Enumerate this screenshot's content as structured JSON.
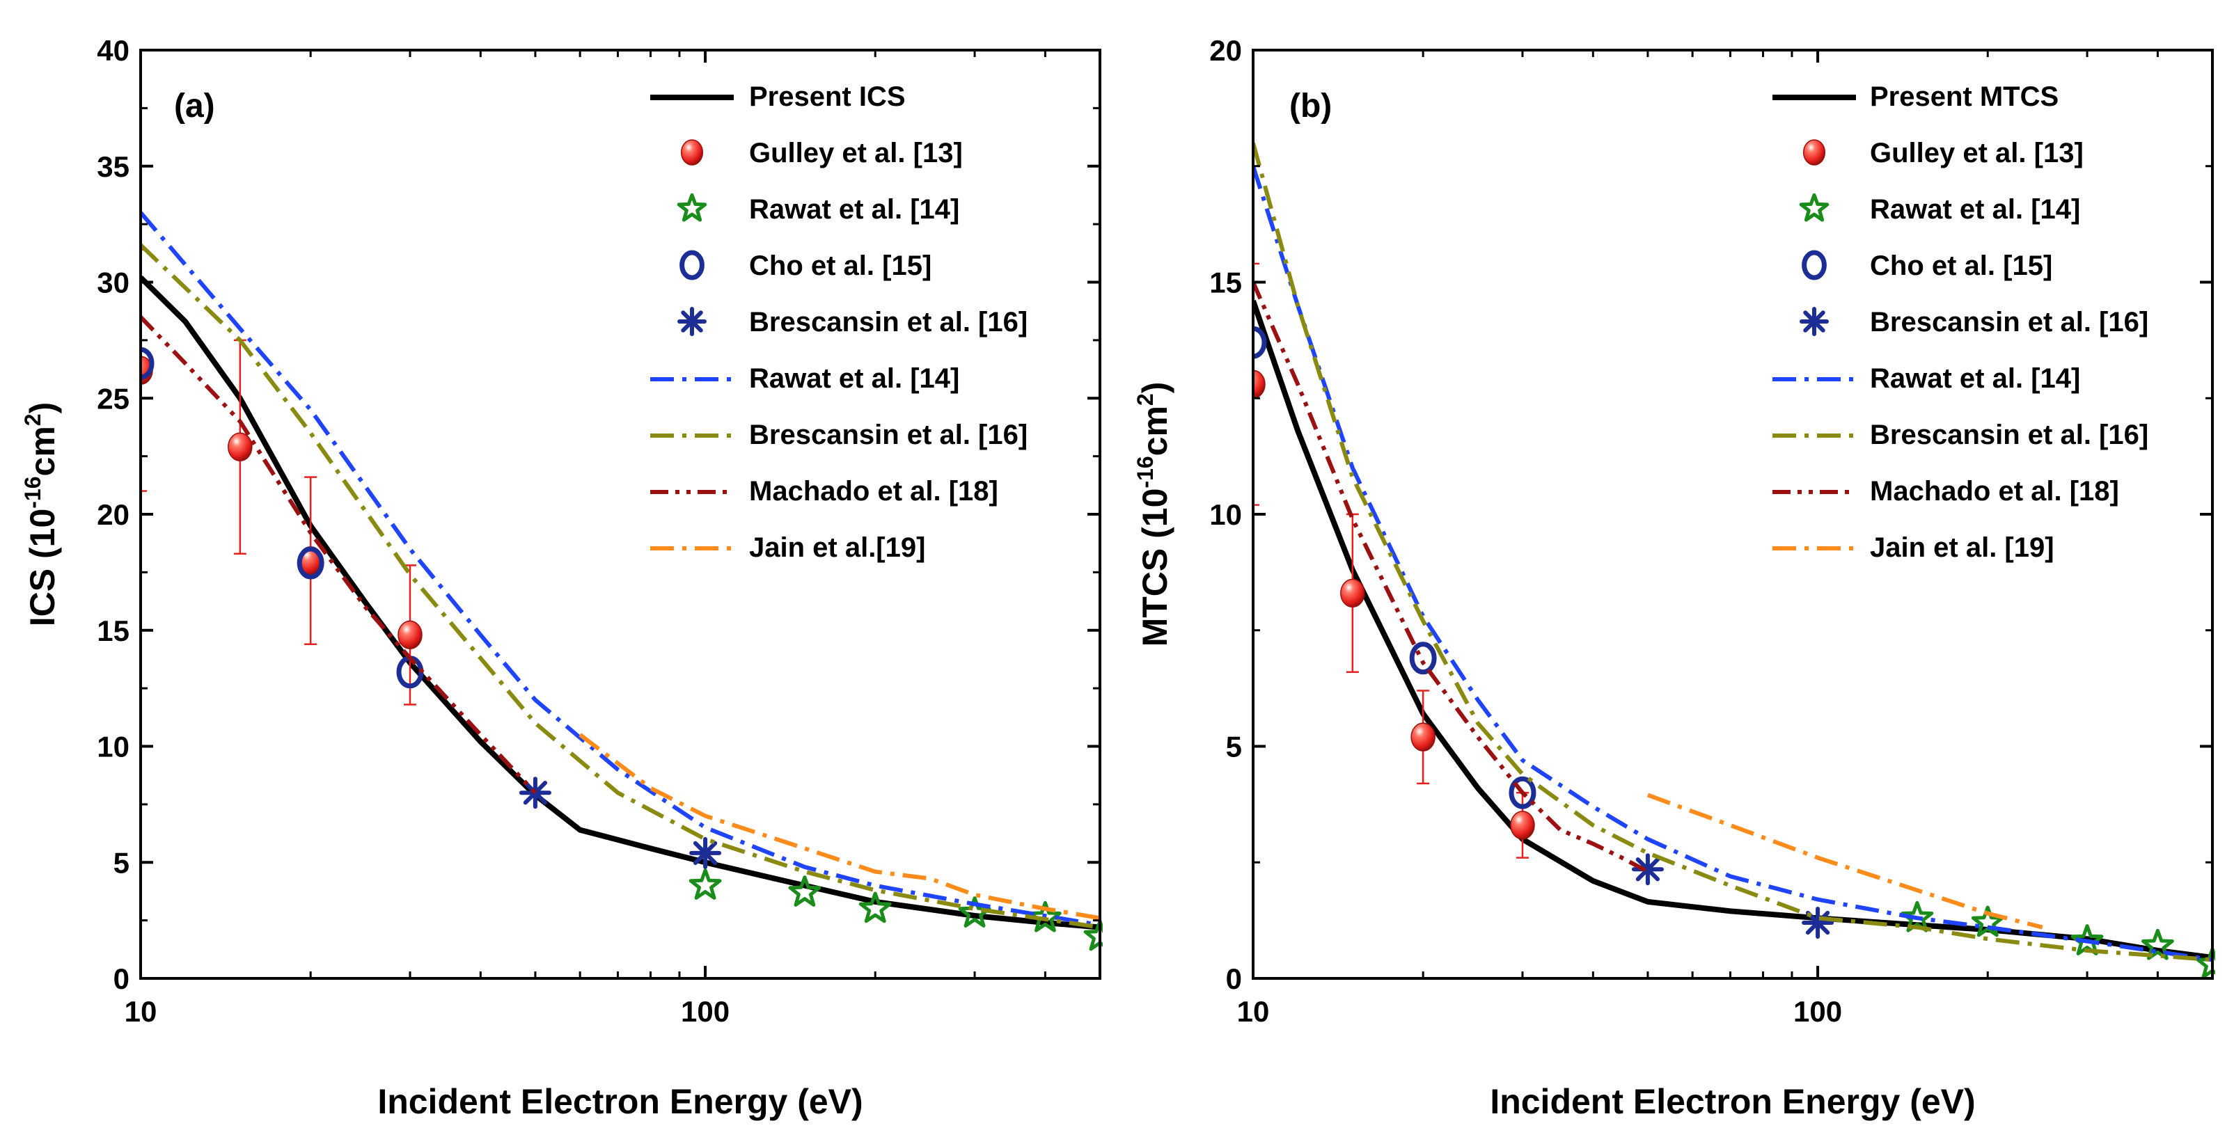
{
  "chart_data": [
    {
      "type": "line",
      "panel_label": "(a)",
      "xlabel": "Incident Electron Energy (eV)",
      "ylabel_main": "ICS (10",
      "ylabel_exp": "-16",
      "ylabel_unit": "cm",
      "ylabel_sq": "2",
      "ylabel_close": ")",
      "x_scale": "log",
      "xlim": [
        10,
        500
      ],
      "ylim": [
        0,
        40
      ],
      "x_ticks": [
        10,
        100
      ],
      "x_tick_labels": [
        "10",
        "100"
      ],
      "y_ticks": [
        0,
        5,
        10,
        15,
        20,
        25,
        30,
        35,
        40
      ],
      "y_tick_labels": [
        "0",
        "5",
        "10",
        "15",
        "20",
        "25",
        "30",
        "35",
        "40"
      ],
      "legend_position": "top-right",
      "series": [
        {
          "name": "Present ICS",
          "kind": "line",
          "style": "solid",
          "color": "#000000",
          "x": [
            10,
            12,
            15,
            20,
            25,
            30,
            40,
            50,
            60,
            80,
            100,
            150,
            200,
            300,
            400,
            500
          ],
          "y": [
            30.2,
            28.3,
            25.0,
            19.5,
            16.2,
            13.6,
            10.2,
            7.9,
            6.4,
            5.6,
            5.0,
            4.0,
            3.3,
            2.7,
            2.4,
            2.2
          ]
        },
        {
          "name": "Gulley et al. [13]",
          "kind": "marker",
          "marker": "sphere",
          "color": "#e8201c",
          "x": [
            10,
            15,
            20,
            30
          ],
          "y": [
            26.2,
            22.9,
            18.0,
            14.8
          ],
          "err": [
            5.2,
            4.6,
            3.6,
            3.0
          ]
        },
        {
          "name": "Rawat et al. [14]",
          "kind": "marker",
          "marker": "star",
          "color": "#1a8c1a",
          "x": [
            100,
            150,
            200,
            300,
            400,
            500
          ],
          "y": [
            4.0,
            3.7,
            3.0,
            2.8,
            2.6,
            1.8
          ]
        },
        {
          "name": "Cho et al. [15]",
          "kind": "marker",
          "marker": "circle",
          "color": "#1c2d96",
          "x": [
            10,
            20,
            30
          ],
          "y": [
            26.5,
            17.9,
            13.2
          ]
        },
        {
          "name": "Brescansin et al. [16]",
          "kind": "marker",
          "marker": "asterisk",
          "color": "#1c2d96",
          "x": [
            50,
            100
          ],
          "y": [
            8.0,
            5.4
          ]
        },
        {
          "name": "Rawat et al. [14]",
          "kind": "line",
          "style": "dashdot",
          "color": "#1f44ff",
          "x": [
            10,
            15,
            20,
            30,
            40,
            50,
            70,
            100,
            150,
            200,
            300,
            500
          ],
          "y": [
            33.0,
            28.0,
            24.5,
            18.5,
            14.8,
            12.0,
            9.0,
            6.5,
            4.8,
            4.0,
            3.2,
            2.3
          ]
        },
        {
          "name": "Brescansin et al. [16]",
          "kind": "line",
          "style": "dashdot",
          "color": "#8a8a10",
          "x": [
            10,
            15,
            20,
            30,
            40,
            50,
            70,
            100,
            150,
            200,
            300,
            500
          ],
          "y": [
            31.6,
            27.5,
            23.5,
            17.4,
            13.8,
            11.0,
            8.0,
            6.0,
            4.6,
            3.8,
            3.0,
            2.2
          ]
        },
        {
          "name": "Machado et al. [18]",
          "kind": "line",
          "style": "dashdotdot",
          "color": "#9b1010",
          "x": [
            10,
            12,
            15,
            20,
            25,
            30,
            40,
            50
          ],
          "y": [
            28.5,
            26.5,
            24.0,
            19.2,
            16.0,
            13.8,
            10.5,
            8.0
          ]
        },
        {
          "name": "Jain et al.[19]",
          "kind": "line",
          "style": "dashdot",
          "color": "#ff8c1a",
          "x": [
            60,
            80,
            100,
            150,
            200,
            250,
            300,
            400,
            500
          ],
          "y": [
            10.5,
            8.2,
            7.0,
            5.6,
            4.6,
            4.3,
            3.6,
            3.0,
            2.6
          ]
        }
      ]
    },
    {
      "type": "line",
      "panel_label": "(b)",
      "xlabel": "Incident Electron Energy (eV)",
      "ylabel_main": "MTCS (10",
      "ylabel_exp": "-16",
      "ylabel_unit": "cm",
      "ylabel_sq": "2",
      "ylabel_close": ")",
      "x_scale": "log",
      "xlim": [
        10,
        500
      ],
      "ylim": [
        0,
        20
      ],
      "x_ticks": [
        10,
        100
      ],
      "x_tick_labels": [
        "10",
        "100"
      ],
      "y_ticks": [
        0,
        5,
        10,
        15,
        20
      ],
      "y_tick_labels": [
        "0",
        "5",
        "10",
        "15",
        "20"
      ],
      "legend_position": "top-right",
      "series": [
        {
          "name": "Present MTCS",
          "kind": "line",
          "style": "solid",
          "color": "#000000",
          "x": [
            10,
            12,
            15,
            20,
            25,
            30,
            40,
            50,
            70,
            100,
            150,
            200,
            300,
            400,
            500
          ],
          "y": [
            14.6,
            11.8,
            8.8,
            5.7,
            4.1,
            3.0,
            2.1,
            1.65,
            1.45,
            1.3,
            1.15,
            1.05,
            0.85,
            0.6,
            0.45
          ]
        },
        {
          "name": "Gulley et al. [13]",
          "kind": "marker",
          "marker": "sphere",
          "color": "#e8201c",
          "x": [
            10,
            15,
            20,
            30
          ],
          "y": [
            12.8,
            8.3,
            5.2,
            3.3
          ],
          "err": [
            2.6,
            1.7,
            1.0,
            0.7
          ]
        },
        {
          "name": "Rawat et al. [14]",
          "kind": "marker",
          "marker": "star",
          "color": "#1a8c1a",
          "x": [
            150,
            200,
            300,
            400,
            500
          ],
          "y": [
            1.3,
            1.2,
            0.8,
            0.7,
            0.3
          ]
        },
        {
          "name": "Cho et al. [15]",
          "kind": "marker",
          "marker": "circle",
          "color": "#1c2d96",
          "x": [
            10,
            20,
            30
          ],
          "y": [
            13.7,
            6.9,
            4.0
          ]
        },
        {
          "name": "Brescansin et al. [16]",
          "kind": "marker",
          "marker": "asterisk",
          "color": "#1c2d96",
          "x": [
            50,
            100
          ],
          "y": [
            2.35,
            1.2
          ]
        },
        {
          "name": "Rawat et al. [14]",
          "kind": "line",
          "style": "dashdot",
          "color": "#1f44ff",
          "x": [
            10,
            12,
            15,
            20,
            25,
            30,
            40,
            50,
            70,
            100,
            150,
            200,
            300,
            500
          ],
          "y": [
            17.5,
            14.5,
            11.0,
            7.8,
            6.0,
            4.7,
            3.7,
            3.0,
            2.2,
            1.7,
            1.3,
            1.1,
            0.8,
            0.4
          ]
        },
        {
          "name": "Brescansin et al. [16]",
          "kind": "line",
          "style": "dashdot",
          "color": "#8a8a10",
          "x": [
            10,
            12,
            15,
            20,
            25,
            30,
            40,
            50,
            70,
            100,
            150,
            200,
            300,
            500
          ],
          "y": [
            18.0,
            14.5,
            10.8,
            7.7,
            5.5,
            4.4,
            3.3,
            2.7,
            2.0,
            1.3,
            1.1,
            0.85,
            0.6,
            0.4
          ]
        },
        {
          "name": "Machado et al. [18]",
          "kind": "line",
          "style": "dashdotdot",
          "color": "#9b1010",
          "x": [
            10,
            12,
            15,
            20,
            25,
            30,
            35,
            40,
            45,
            50
          ],
          "y": [
            15.0,
            12.8,
            9.9,
            6.8,
            5.2,
            4.0,
            3.2,
            2.9,
            2.6,
            2.3
          ]
        },
        {
          "name": "Jain et al. [19]",
          "kind": "line",
          "style": "dashdot",
          "color": "#ff8c1a",
          "x": [
            50,
            70,
            100,
            150,
            200,
            250
          ],
          "y": [
            3.95,
            3.3,
            2.6,
            1.9,
            1.4,
            1.1
          ]
        }
      ]
    }
  ]
}
